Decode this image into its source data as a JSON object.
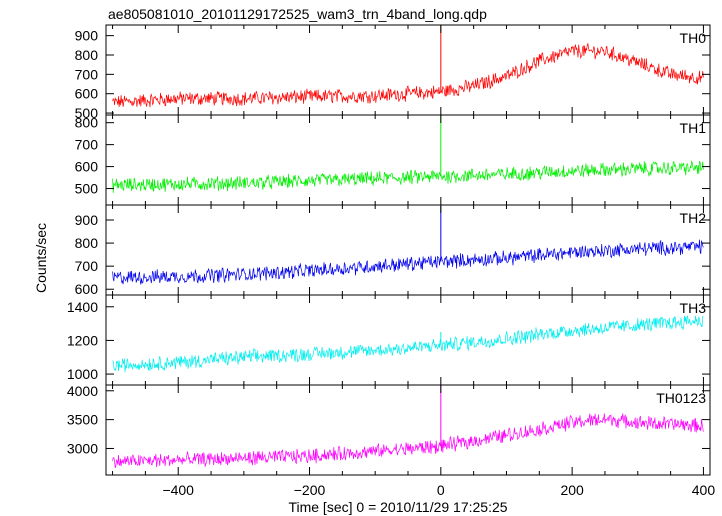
{
  "chart_data": {
    "type": "line",
    "title": "ae805081010_20101129172525_wam3_trn_4band_long.qdp",
    "xlabel": "Time [sec] 0 = 2010/11/29 17:25:25",
    "ylabel": "Counts/sec",
    "xlim": [
      -510,
      410
    ],
    "xticks": [
      -400,
      -200,
      0,
      200,
      400
    ],
    "grid": false,
    "legend": "none",
    "panels": [
      {
        "name": "TH0",
        "color": "#ff0000",
        "ylim": [
          490,
          955
        ],
        "yticks": [
          500,
          600,
          700,
          800,
          900
        ],
        "x": [
          -500,
          -400,
          -300,
          -200,
          -100,
          0,
          50,
          100,
          150,
          200,
          250,
          300,
          350,
          400
        ],
        "y": [
          555,
          575,
          575,
          585,
          590,
          610,
          640,
          690,
          770,
          820,
          820,
          760,
          700,
          680
        ],
        "spike": {
          "x": 0,
          "y": 960
        }
      },
      {
        "name": "TH1",
        "color": "#00ee00",
        "ylim": [
          425,
          835
        ],
        "yticks": [
          500,
          600,
          700,
          800
        ],
        "x": [
          -500,
          -400,
          -300,
          -200,
          -100,
          0,
          100,
          200,
          300,
          400
        ],
        "y": [
          515,
          520,
          525,
          535,
          545,
          555,
          565,
          580,
          590,
          595
        ],
        "spike": {
          "x": 0,
          "y": 840
        }
      },
      {
        "name": "TH2",
        "color": "#0000ee",
        "ylim": [
          575,
          965
        ],
        "yticks": [
          600,
          700,
          800,
          900
        ],
        "x": [
          -500,
          -400,
          -300,
          -200,
          -100,
          0,
          100,
          200,
          300,
          400
        ],
        "y": [
          650,
          655,
          665,
          680,
          700,
          720,
          735,
          760,
          775,
          785
        ],
        "spike": {
          "x": 0,
          "y": 960
        }
      },
      {
        "name": "TH3",
        "color": "#00eeee",
        "ylim": [
          935,
          1470
        ],
        "yticks": [
          1000,
          1200,
          1400
        ],
        "x": [
          -500,
          -400,
          -300,
          -200,
          -100,
          0,
          100,
          200,
          300,
          400
        ],
        "y": [
          1050,
          1070,
          1100,
          1120,
          1140,
          1170,
          1210,
          1260,
          1290,
          1320
        ],
        "spike": {
          "x": 0,
          "y": 1250
        }
      },
      {
        "name": "TH0123",
        "color": "#ff00ff",
        "ylim": [
          2540,
          4100
        ],
        "yticks": [
          3000,
          3500,
          4000
        ],
        "x": [
          -500,
          -400,
          -300,
          -200,
          -100,
          0,
          50,
          100,
          150,
          200,
          250,
          300,
          350,
          400
        ],
        "y": [
          2770,
          2800,
          2830,
          2870,
          2950,
          3040,
          3130,
          3230,
          3330,
          3450,
          3510,
          3450,
          3420,
          3390
        ],
        "spike": {
          "x": 0,
          "y": 4100
        }
      }
    ]
  }
}
